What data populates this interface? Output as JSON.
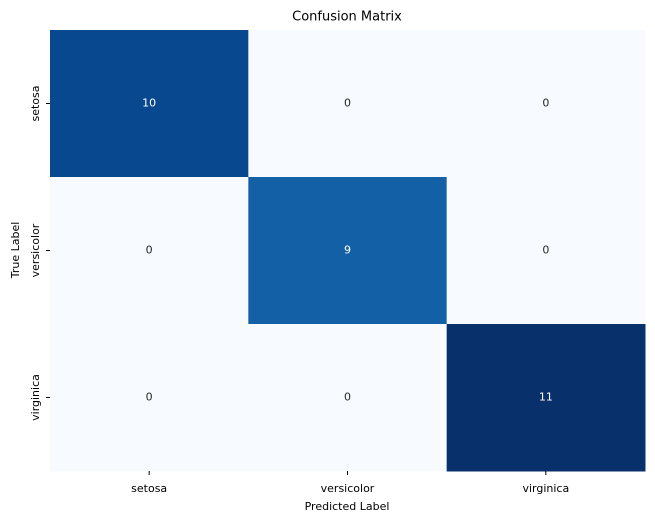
{
  "chart_data": {
    "type": "heatmap",
    "title": "Confusion Matrix",
    "x_label": "Predicted Label",
    "y_label": "True Label",
    "x_categories": [
      "setosa",
      "versicolor",
      "virginica"
    ],
    "y_categories": [
      "setosa",
      "versicolor",
      "virginica"
    ],
    "values": [
      [
        10,
        0,
        0
      ],
      [
        0,
        9,
        0
      ],
      [
        0,
        0,
        11
      ]
    ],
    "colormap": [
      "#f7fbff",
      "#deebf7",
      "#c6dbef",
      "#9ecae1",
      "#6baed6",
      "#4292c6",
      "#2171b5",
      "#08519c",
      "#08306b"
    ]
  }
}
